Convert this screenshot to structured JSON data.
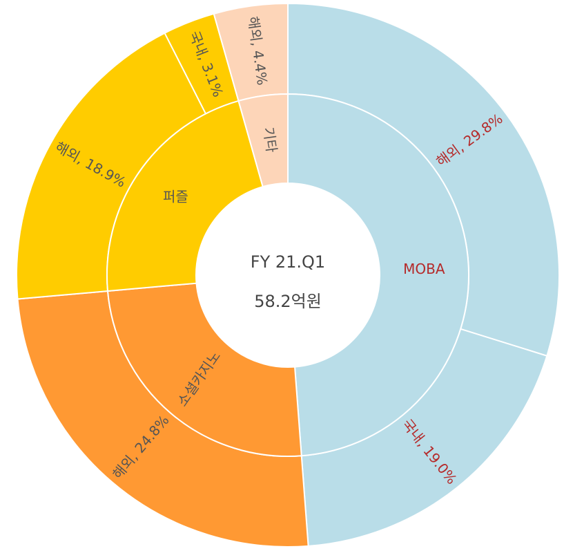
{
  "chart_data": {
    "type": "sunburst",
    "center": [
      "FY 21.Q1",
      "58.2억원"
    ],
    "groups": [
      {
        "name": "MOBA",
        "color": "#b9dde8",
        "text_color": "#b52a2a",
        "children": [
          {
            "value": 29.8,
            "label": "해외, 29.8%"
          },
          {
            "value": 19.0,
            "label": "국내, 19.0%"
          }
        ]
      },
      {
        "name": "소셜카지노",
        "color": "#ff9933",
        "text_color": "#555555",
        "children": [
          {
            "value": 24.8,
            "label": "해외, 24.8%"
          }
        ]
      },
      {
        "name": "퍼즐",
        "color": "#ffcc00",
        "text_color": "#555555",
        "children": [
          {
            "value": 18.9,
            "label": "해외, 18.9%"
          },
          {
            "value": 3.1,
            "label": "국내, 3.1%"
          }
        ]
      },
      {
        "name": "기타",
        "color": "#fdd5b8",
        "text_color": "#555555",
        "children": [
          {
            "value": 4.4,
            "label": "해외, 4.4%"
          }
        ]
      }
    ]
  }
}
